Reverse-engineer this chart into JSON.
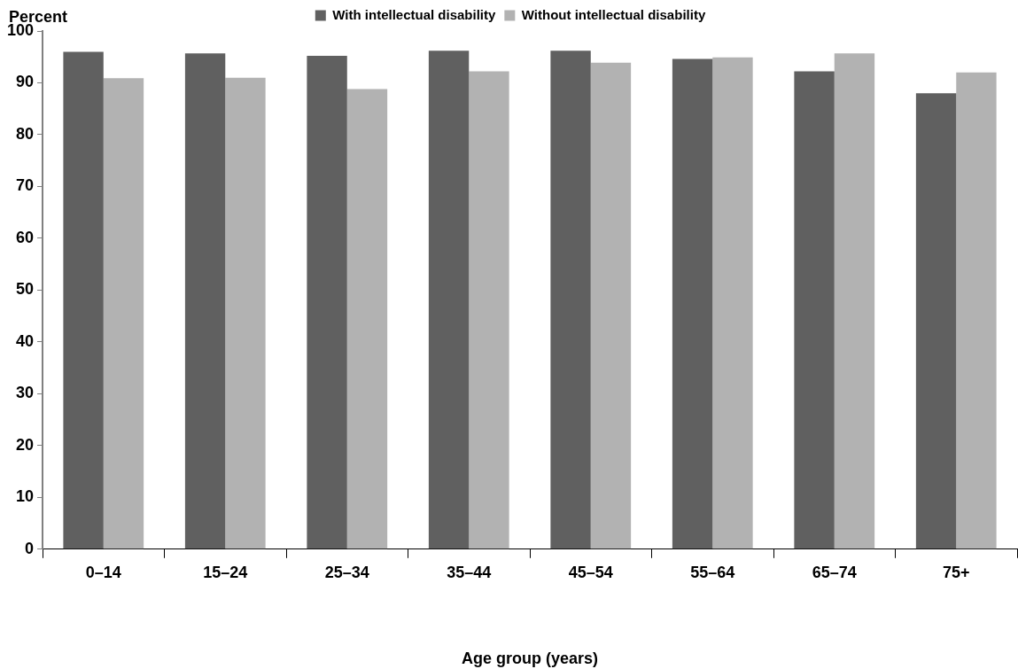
{
  "chart_data": {
    "type": "bar",
    "ylabel": "Percent",
    "xlabel": "Age group (years)",
    "categories": [
      "0–14",
      "15–24",
      "25–34",
      "35–44",
      "45–54",
      "55–64",
      "65–74",
      "75+"
    ],
    "series": [
      {
        "name": "With intellectual disability",
        "color": "#606060",
        "values": [
          96.0,
          95.7,
          95.2,
          96.2,
          96.2,
          94.6,
          92.2,
          88.0
        ]
      },
      {
        "name": "Without intellectual disability",
        "color": "#b2b2b2",
        "values": [
          90.9,
          91.0,
          88.8,
          92.2,
          93.9,
          94.9,
          95.7,
          92.0
        ]
      }
    ],
    "ylim": [
      0,
      100
    ],
    "yticks": [
      0,
      10,
      20,
      30,
      40,
      50,
      60,
      70,
      80,
      90,
      100
    ],
    "grid": false,
    "legend": "top"
  }
}
